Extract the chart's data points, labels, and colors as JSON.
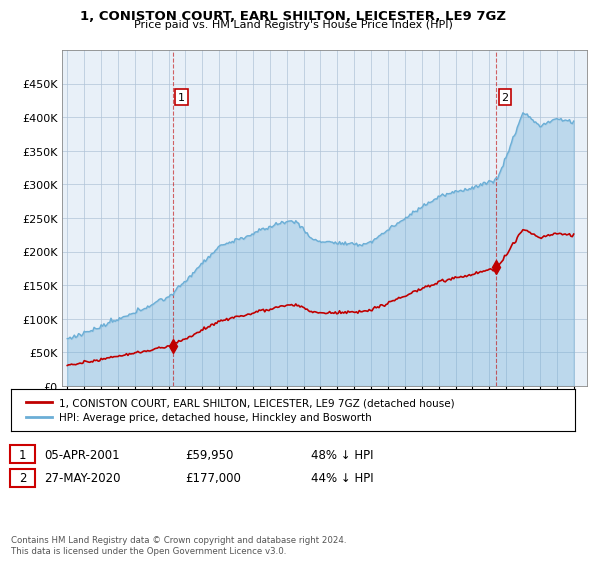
{
  "title": "1, CONISTON COURT, EARL SHILTON, LEICESTER, LE9 7GZ",
  "subtitle": "Price paid vs. HM Land Registry's House Price Index (HPI)",
  "ylabel_ticks": [
    "£0",
    "£50K",
    "£100K",
    "£150K",
    "£200K",
    "£250K",
    "£300K",
    "£350K",
    "£400K",
    "£450K"
  ],
  "ytick_values": [
    0,
    50000,
    100000,
    150000,
    200000,
    250000,
    300000,
    350000,
    400000,
    450000
  ],
  "ymax": 500000,
  "hpi_color": "#6baed6",
  "hpi_fill_color": "#c6dcf0",
  "price_color": "#c00000",
  "sale1_x": 2001.27,
  "sale1_price": 59950,
  "sale2_x": 2020.42,
  "sale2_price": 177000,
  "legend_line1": "1, CONISTON COURT, EARL SHILTON, LEICESTER, LE9 7GZ (detached house)",
  "legend_line2": "HPI: Average price, detached house, Hinckley and Bosworth",
  "footer": "Contains HM Land Registry data © Crown copyright and database right 2024.\nThis data is licensed under the Open Government Licence v3.0.",
  "bg_color": "#ffffff",
  "chart_bg": "#e8f0f8",
  "grid_color": "#b0c4d8"
}
